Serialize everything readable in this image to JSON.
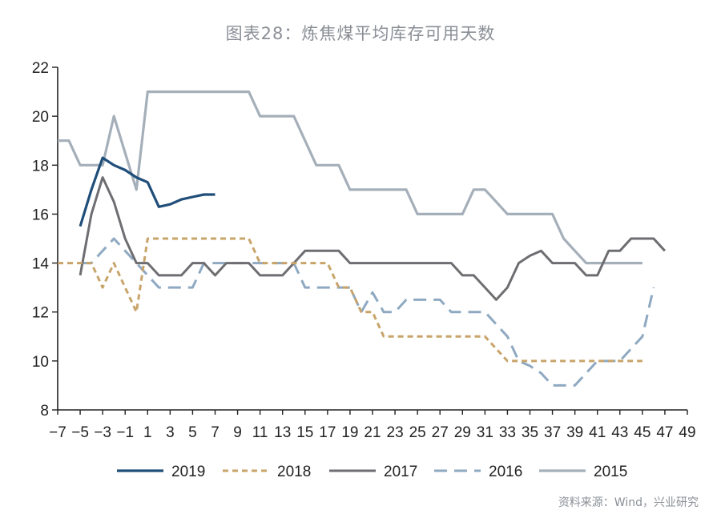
{
  "title": "图表28：炼焦煤平均库存可用天数",
  "source": "资料来源：Wind，兴业研究",
  "chart_data": {
    "type": "line",
    "title": "图表28：炼焦煤平均库存可用天数",
    "xlabel": "",
    "ylabel": "",
    "xlim": [
      -7,
      49
    ],
    "ylim": [
      8,
      22
    ],
    "x_ticks": [
      -7,
      -5,
      -3,
      -1,
      1,
      3,
      5,
      7,
      9,
      11,
      13,
      15,
      17,
      19,
      21,
      23,
      25,
      27,
      29,
      31,
      33,
      35,
      37,
      39,
      41,
      43,
      45,
      47,
      49
    ],
    "x_tick_labels": [
      "−7",
      "−5",
      "−3",
      "−1",
      "1",
      "3",
      "5",
      "7",
      "9",
      "11",
      "13",
      "15",
      "17",
      "19",
      "21",
      "23",
      "25",
      "27",
      "29",
      "31",
      "33",
      "35",
      "37",
      "39",
      "41",
      "43",
      "45",
      "47",
      "49"
    ],
    "y_ticks": [
      8,
      10,
      12,
      14,
      16,
      18,
      20,
      22
    ],
    "y_tick_labels": [
      "8",
      "10",
      "12",
      "14",
      "16",
      "18",
      "20",
      "22"
    ],
    "grid": false,
    "legend_position": "bottom",
    "series": [
      {
        "name": "2019",
        "color": "#1f4e79",
        "dash": "solid",
        "width": 3.2,
        "x": [
          -5,
          -4,
          -3,
          -2,
          -1,
          0,
          1,
          2,
          3,
          4,
          5,
          6,
          7
        ],
        "y": [
          15.5,
          17,
          18.3,
          18,
          17.8,
          17.5,
          17.3,
          16.3,
          16.4,
          16.6,
          16.7,
          16.8,
          16.8
        ]
      },
      {
        "name": "2018",
        "color": "#c8a46a",
        "dash": "dashed",
        "width": 3,
        "x": [
          -7,
          -6,
          -5,
          -4,
          -3,
          -2,
          -1,
          0,
          1,
          2,
          3,
          4,
          5,
          6,
          7,
          8,
          9,
          10,
          11,
          12,
          13,
          14,
          15,
          16,
          17,
          18,
          19,
          20,
          21,
          22,
          23,
          24,
          25,
          26,
          27,
          28,
          29,
          30,
          31,
          32,
          33,
          34,
          35,
          36,
          37,
          38,
          39,
          40,
          41,
          42,
          43,
          44,
          45
        ],
        "y": [
          14,
          14,
          14,
          14,
          13,
          14,
          13,
          12,
          15,
          15,
          15,
          15,
          15,
          15,
          15,
          15,
          15,
          15,
          14,
          14,
          14,
          14,
          14,
          14,
          14,
          13,
          13,
          12,
          12,
          11,
          11,
          11,
          11,
          11,
          11,
          11,
          11,
          11,
          11,
          10.5,
          10,
          10,
          10,
          10,
          10,
          10,
          10,
          10,
          10,
          10,
          10,
          10,
          10
        ]
      },
      {
        "name": "2017",
        "color": "#6e6e72",
        "dash": "solid",
        "width": 3,
        "x": [
          -5,
          -4,
          -3,
          -2,
          -1,
          0,
          1,
          2,
          3,
          4,
          5,
          6,
          7,
          8,
          9,
          10,
          11,
          12,
          13,
          14,
          15,
          16,
          17,
          18,
          19,
          20,
          21,
          22,
          23,
          24,
          25,
          26,
          27,
          28,
          29,
          30,
          31,
          32,
          33,
          34,
          35,
          36,
          37,
          38,
          39,
          40,
          41,
          42,
          43,
          44,
          45,
          46,
          47
        ],
        "y": [
          13.5,
          16,
          17.5,
          16.5,
          15,
          14,
          14,
          13.5,
          13.5,
          13.5,
          14,
          14,
          13.5,
          14,
          14,
          14,
          13.5,
          13.5,
          13.5,
          14,
          14.5,
          14.5,
          14.5,
          14.5,
          14,
          14,
          14,
          14,
          14,
          14,
          14,
          14,
          14,
          14,
          13.5,
          13.5,
          13,
          12.5,
          13,
          14,
          14.3,
          14.5,
          14,
          14,
          14,
          13.5,
          13.5,
          14.5,
          14.5,
          15,
          15,
          15,
          14.5
        ]
      },
      {
        "name": "2016",
        "color": "#8ea9c1",
        "dash": "dashed",
        "width": 3,
        "x": [
          -5,
          -4,
          -3,
          -2,
          -1,
          0,
          1,
          2,
          3,
          4,
          5,
          6,
          7,
          8,
          9,
          10,
          11,
          12,
          13,
          14,
          15,
          16,
          17,
          18,
          19,
          20,
          21,
          22,
          23,
          24,
          25,
          26,
          27,
          28,
          29,
          30,
          31,
          32,
          33,
          34,
          35,
          36,
          37,
          38,
          39,
          40,
          41,
          42,
          43,
          44,
          45,
          46
        ],
        "y": [
          14,
          14,
          14.5,
          15,
          14.5,
          14,
          13.5,
          13,
          13,
          13,
          13,
          14,
          14,
          14,
          14,
          14,
          14,
          14,
          14,
          14,
          13,
          13,
          13,
          13,
          13,
          12,
          12.8,
          12,
          12,
          12.5,
          12.5,
          12.5,
          12.5,
          12,
          12,
          12,
          12,
          11.5,
          11,
          10,
          9.8,
          9.5,
          9,
          9,
          9,
          9.5,
          10,
          10,
          10,
          10.5,
          11,
          13
        ]
      },
      {
        "name": "2015",
        "color": "#a5afb9",
        "dash": "solid",
        "width": 3.2,
        "x": [
          -7,
          -6,
          -5,
          -4,
          -3,
          -2,
          -1,
          0,
          1,
          2,
          3,
          4,
          5,
          6,
          7,
          8,
          9,
          10,
          11,
          12,
          13,
          14,
          15,
          16,
          17,
          18,
          19,
          20,
          21,
          22,
          23,
          24,
          25,
          26,
          27,
          28,
          29,
          30,
          31,
          32,
          33,
          34,
          35,
          36,
          37,
          38,
          39,
          40,
          41,
          42,
          43,
          44,
          45
        ],
        "y": [
          19,
          19,
          18,
          18,
          18,
          20,
          18.5,
          17,
          21,
          21,
          21,
          21,
          21,
          21,
          21,
          21,
          21,
          21,
          20,
          20,
          20,
          20,
          19,
          18,
          18,
          18,
          17,
          17,
          17,
          17,
          17,
          17,
          16,
          16,
          16,
          16,
          16,
          17,
          17,
          16.5,
          16,
          16,
          16,
          16,
          16,
          15,
          14.5,
          14,
          14,
          14,
          14,
          14,
          14
        ]
      }
    ]
  }
}
